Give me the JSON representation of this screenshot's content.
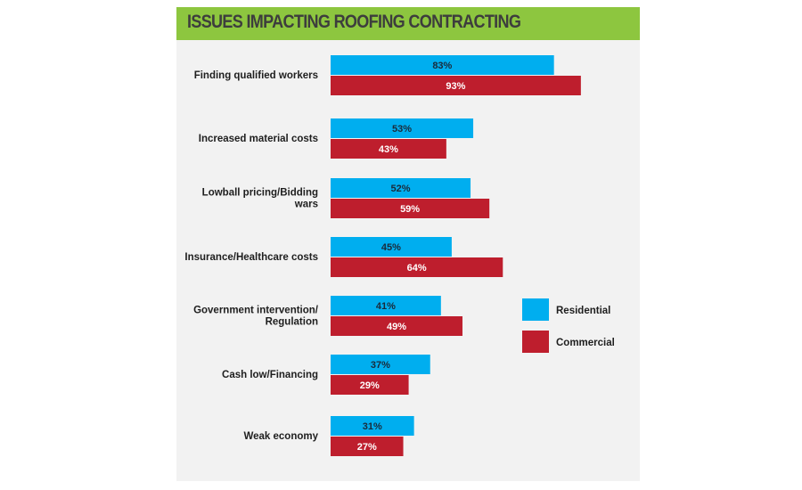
{
  "chart_data": {
    "type": "bar",
    "orientation": "horizontal",
    "title": "ISSUES IMPACTING ROOFING CONTRACTING",
    "xlabel": "",
    "ylabel": "",
    "xlim": [
      0,
      100
    ],
    "grid": false,
    "legend_position": "right",
    "categories": [
      [
        "Finding qualified workers"
      ],
      [
        "Increased material costs"
      ],
      [
        "Lowball pricing/Bidding",
        "wars"
      ],
      [
        "Insurance/Healthcare costs"
      ],
      [
        "Government intervention/",
        "Regulation"
      ],
      [
        "Cash low/Financing"
      ],
      [
        "Weak economy"
      ]
    ],
    "series": [
      {
        "name": "Residential",
        "color": "#00aeef",
        "label_color": "#1a2a3a",
        "values": [
          83,
          53,
          52,
          45,
          41,
          37,
          31
        ]
      },
      {
        "name": "Commercial",
        "color": "#be1e2d",
        "label_color": "#ffffff",
        "values": [
          93,
          43,
          59,
          64,
          49,
          29,
          27
        ]
      }
    ],
    "value_suffix": "%"
  },
  "colors": {
    "title_bar": "#8dc63f",
    "title_text": "#3d3d3d",
    "panel": "#f2f2f2"
  }
}
